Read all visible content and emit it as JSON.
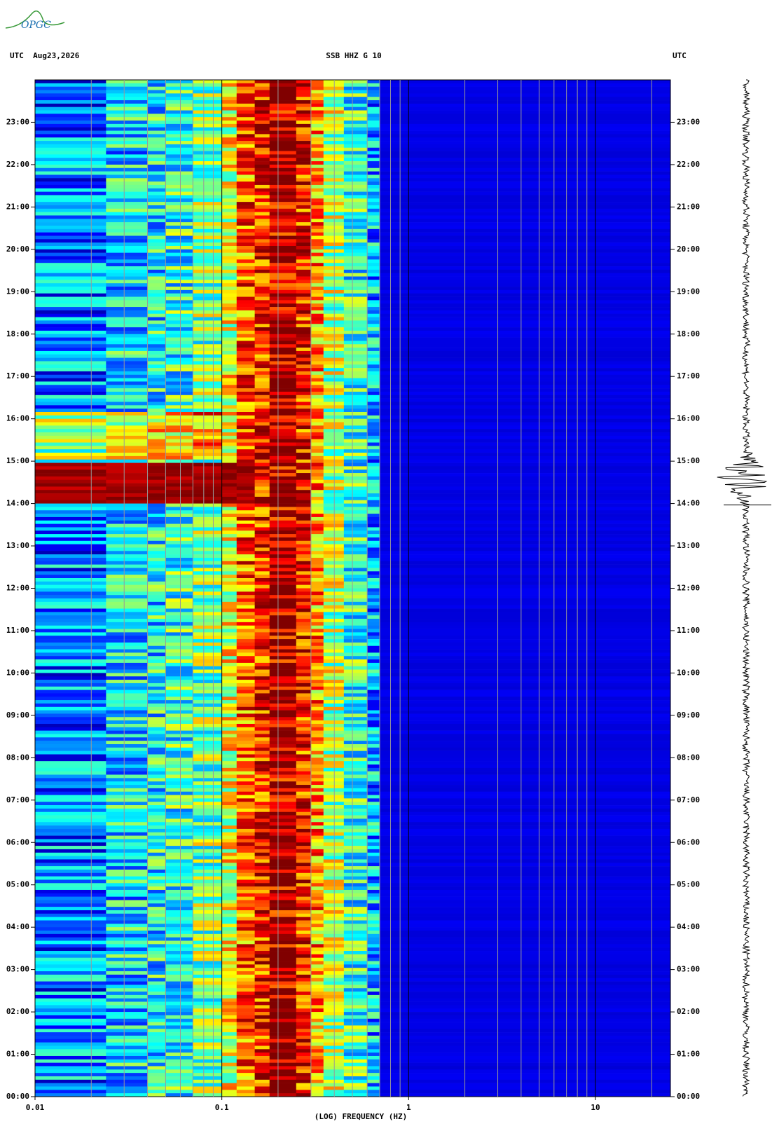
{
  "logo": "OPGC",
  "chart_data": {
    "type": "spectrogram",
    "header_left": "UTC  Aug23,2026",
    "title": "SSB HHZ G 10",
    "header_right": "UTC",
    "x_label": "(LOG) FREQUENCY (HZ)",
    "xscale": "log",
    "xlim": [
      0.01,
      25.2
    ],
    "xticks": [
      0.01,
      0.1,
      1,
      10
    ],
    "xgrid": [
      0.02,
      0.03,
      0.04,
      0.05,
      0.06,
      0.07,
      0.08,
      0.09,
      0.2,
      0.3,
      0.4,
      0.5,
      0.6,
      0.7,
      0.8,
      0.9,
      2,
      3,
      4,
      5,
      6,
      7,
      8,
      9,
      20
    ],
    "ylim": [
      0,
      24
    ],
    "yticks": [
      {
        "value": 0,
        "label": "00:00"
      },
      {
        "value": 1,
        "label": "01:00"
      },
      {
        "value": 2,
        "label": "02:00"
      },
      {
        "value": 3,
        "label": "03:00"
      },
      {
        "value": 4,
        "label": "04:00"
      },
      {
        "value": 5,
        "label": "05:00"
      },
      {
        "value": 6,
        "label": "06:00"
      },
      {
        "value": 7,
        "label": "07:00"
      },
      {
        "value": 8,
        "label": "08:00"
      },
      {
        "value": 9,
        "label": "09:00"
      },
      {
        "value": 10,
        "label": "10:00"
      },
      {
        "value": 11,
        "label": "11:00"
      },
      {
        "value": 12,
        "label": "12:00"
      },
      {
        "value": 13,
        "label": "13:00"
      },
      {
        "value": 14,
        "label": "14:00"
      },
      {
        "value": 15,
        "label": "15:00"
      },
      {
        "value": 16,
        "label": "16:00"
      },
      {
        "value": 17,
        "label": "17:00"
      },
      {
        "value": 18,
        "label": "18:00"
      },
      {
        "value": 19,
        "label": "19:00"
      },
      {
        "value": 20,
        "label": "20:00"
      },
      {
        "value": 21,
        "label": "21:00"
      },
      {
        "value": 22,
        "label": "22:00"
      },
      {
        "value": 23,
        "label": "23:00"
      }
    ]
  }
}
